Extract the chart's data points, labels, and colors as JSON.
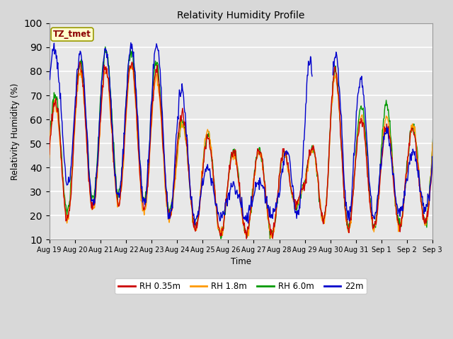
{
  "title": "Relativity Humidity Profile",
  "xlabel": "Time",
  "ylabel": "Relativity Humidity (%)",
  "ylim": [
    10,
    100
  ],
  "yticks": [
    10,
    20,
    30,
    40,
    50,
    60,
    70,
    80,
    90,
    100
  ],
  "colors": {
    "RH 0.35m": "#cc0000",
    "RH 1.8m": "#ff9900",
    "RH 6.0m": "#009900",
    "22m": "#0000cc"
  },
  "legend_labels": [
    "RH 0.35m",
    "RH 1.8m",
    "RH 6.0m",
    "22m"
  ],
  "annotation_text": "TZ_tmet",
  "annotation_color": "#8b0000",
  "annotation_bg": "#ffffcc",
  "plot_bg": "#e8e8e8",
  "fig_bg": "#d8d8d8",
  "x_labels": [
    "Aug 19",
    "Aug 20",
    "Aug 21",
    "Aug 22",
    "Aug 23",
    "Aug 24",
    "Aug 25",
    "Aug 26",
    "Aug 27",
    "Aug 28",
    "Aug 29",
    "Aug 30",
    "Aug 31",
    "Sep 1",
    "Sep 2",
    "Sep 3"
  ]
}
